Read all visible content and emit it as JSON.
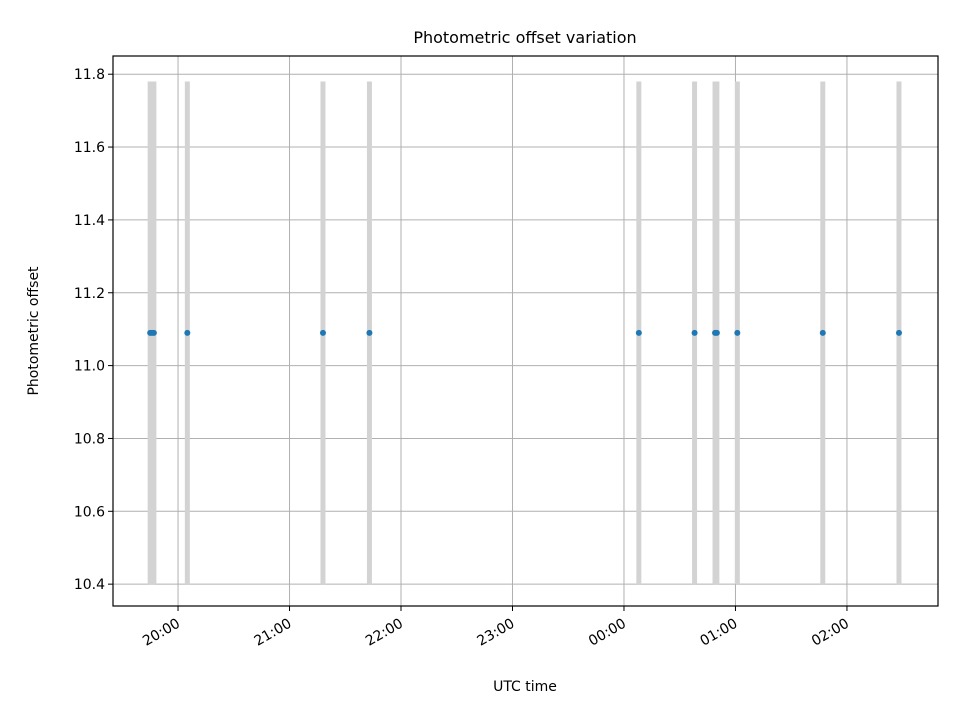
{
  "chart_data": {
    "type": "scatter",
    "title": "Photometric offset variation",
    "xlabel": "UTC time",
    "ylabel": "Photometric offset",
    "x_axis_type": "time",
    "xlim": [
      "19:25",
      "02:49"
    ],
    "ylim": [
      10.34,
      11.85
    ],
    "x_ticks": [
      "20:00",
      "21:00",
      "22:00",
      "23:00",
      "00:00",
      "01:00",
      "02:00"
    ],
    "y_ticks": [
      "10.4",
      "10.6",
      "10.8",
      "11.0",
      "11.2",
      "11.4",
      "11.6",
      "11.8"
    ],
    "grid": true,
    "marker_color": "#1f77b4",
    "span_color": "#d3d3d3",
    "series": [
      {
        "x": [
          "19:45",
          "19:46",
          "19:47",
          "20:05",
          "21:18",
          "21:43",
          "00:08",
          "00:38",
          "00:49",
          "00:50",
          "01:01",
          "01:47",
          "02:28"
        ],
        "y": [
          11.09,
          11.09,
          11.09,
          11.09,
          11.09,
          11.09,
          11.09,
          11.09,
          11.09,
          11.09,
          11.09,
          11.09,
          11.09
        ]
      }
    ],
    "spans": {
      "ymin": 10.4,
      "ymax": 11.78,
      "x": [
        "19:45",
        "19:46",
        "19:47",
        "20:05",
        "21:18",
        "21:43",
        "00:08",
        "00:38",
        "00:49",
        "00:50",
        "01:01",
        "01:47",
        "02:28"
      ]
    }
  }
}
